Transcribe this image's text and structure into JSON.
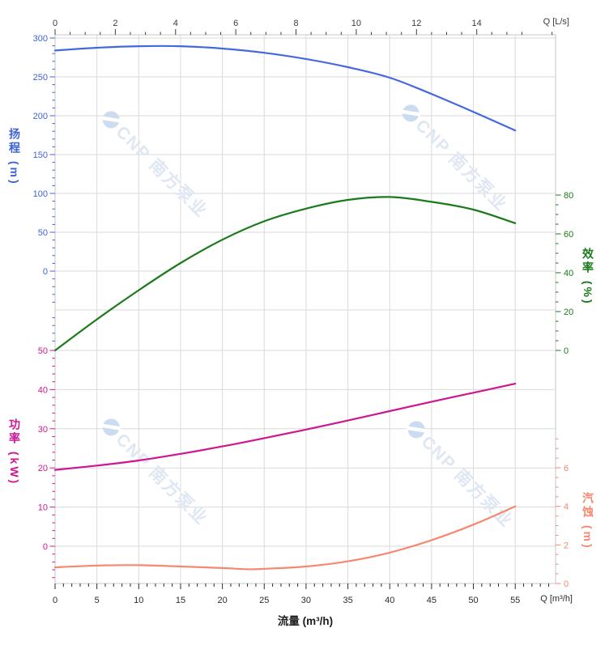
{
  "chart_data": {
    "type": "line",
    "title": "",
    "xlabel": "流量 (m³/h)",
    "x_m3h": [
      0,
      5,
      10,
      15,
      20,
      25,
      30,
      35,
      40,
      45,
      50,
      55
    ],
    "series": [
      {
        "name": "扬程",
        "unit": "m",
        "axis": "head",
        "color": "#4468dd",
        "values": [
          284,
          287.5,
          289.5,
          289.5,
          286.5,
          281,
          273,
          262.5,
          249,
          228,
          205,
          181
        ]
      },
      {
        "name": "效率",
        "unit": "%",
        "axis": "eff",
        "color": "#1b7a1b",
        "values": [
          0,
          16,
          31,
          45,
          57,
          66.5,
          73,
          77.5,
          79,
          76.5,
          72.5,
          65.5
        ]
      },
      {
        "name": "功率",
        "unit": "kW",
        "axis": "power",
        "color": "#ce1593",
        "values": [
          19.5,
          20.6,
          21.9,
          23.6,
          25.5,
          27.6,
          29.8,
          32.1,
          34.5,
          36.9,
          39.2,
          41.5
        ]
      },
      {
        "name": "汽蚀",
        "unit": "m",
        "axis": "npsh",
        "color": "#f5886f",
        "x": [
          0,
          5,
          10,
          15,
          20,
          23,
          25,
          30,
          35,
          40,
          45,
          50,
          55
        ],
        "values": [
          0.84,
          0.93,
          0.95,
          0.88,
          0.8,
          0.74,
          0.76,
          0.88,
          1.15,
          1.6,
          2.25,
          3.05,
          4.0
        ]
      }
    ],
    "axes": {
      "top": {
        "label": "Q [L/s]",
        "ticks": [
          0,
          2,
          4,
          6,
          8,
          10,
          12,
          14
        ],
        "minor_step": 0.5,
        "color": "#3c3c3c"
      },
      "bottom": {
        "label": "Q [m³/h]",
        "title": "流量 (m³/h)",
        "ticks": [
          0,
          5,
          10,
          15,
          20,
          25,
          30,
          35,
          40,
          45,
          50,
          55
        ],
        "minor_step": 1,
        "color": "#2b2b2b"
      },
      "head": {
        "title": "扬程 (m)",
        "ticks": [
          300,
          250,
          200,
          150,
          100,
          50,
          0
        ],
        "range": [
          0,
          300
        ],
        "color": "#3e63d8"
      },
      "power": {
        "title": "功率 (kW)",
        "ticks": [
          50,
          40,
          30,
          20,
          10,
          0
        ],
        "range": [
          0,
          50
        ],
        "color": "#cf1695"
      },
      "eff": {
        "title": "效率 (%)",
        "ticks": [
          80,
          60,
          40,
          20,
          0
        ],
        "range": [
          0,
          80
        ],
        "color": "#1b7a1b"
      },
      "npsh": {
        "title": "汽蚀 (m)",
        "ticks": [
          6,
          4,
          2,
          0
        ],
        "range": [
          0,
          6
        ],
        "color": "#f5886f"
      }
    },
    "grid": true,
    "legend": "none"
  },
  "watermark": {
    "text": "CNP 南方泵业",
    "color": "#dfe7f3",
    "logo_color": "#ccdcf0"
  }
}
